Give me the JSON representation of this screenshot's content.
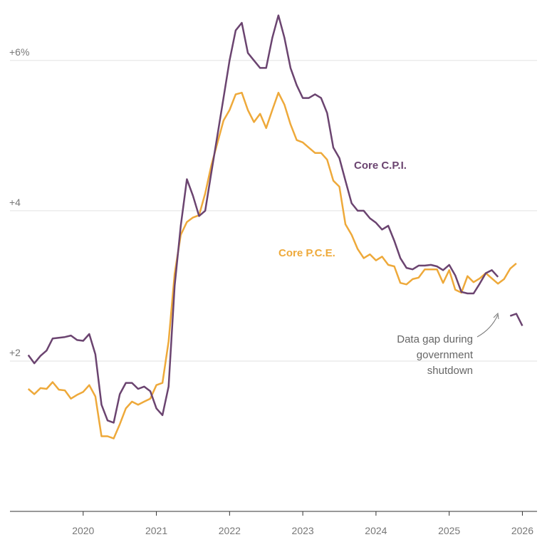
{
  "chart_data": {
    "type": "line",
    "x": [
      2019.25,
      2019.333,
      2019.417,
      2019.5,
      2019.583,
      2019.667,
      2019.75,
      2019.833,
      2019.917,
      2020,
      2020.083,
      2020.167,
      2020.25,
      2020.333,
      2020.417,
      2020.5,
      2020.583,
      2020.667,
      2020.75,
      2020.833,
      2020.917,
      2021,
      2021.083,
      2021.167,
      2021.25,
      2021.333,
      2021.417,
      2021.5,
      2021.583,
      2021.667,
      2021.75,
      2021.833,
      2021.917,
      2022,
      2022.083,
      2022.167,
      2022.25,
      2022.333,
      2022.417,
      2022.5,
      2022.583,
      2022.667,
      2022.75,
      2022.833,
      2022.917,
      2023,
      2023.083,
      2023.167,
      2023.25,
      2023.333,
      2023.417,
      2023.5,
      2023.583,
      2023.667,
      2023.75,
      2023.833,
      2023.917,
      2024,
      2024.083,
      2024.167,
      2024.25,
      2024.333,
      2024.417,
      2024.5,
      2024.583,
      2024.667,
      2024.75,
      2024.833,
      2024.917,
      2025,
      2025.083,
      2025.167,
      2025.25,
      2025.333,
      2025.417,
      2025.5,
      2025.583,
      2025.667,
      2025.75,
      2025.833,
      2025.917,
      2026
    ],
    "series": [
      {
        "name": "Core C.P.I.",
        "color": "#6b4470",
        "values": [
          2.08,
          1.97,
          2.07,
          2.14,
          2.3,
          2.31,
          2.32,
          2.34,
          2.28,
          2.27,
          2.36,
          2.09,
          1.42,
          1.21,
          1.18,
          1.56,
          1.71,
          1.71,
          1.63,
          1.66,
          1.6,
          1.37,
          1.28,
          1.66,
          3.0,
          3.8,
          4.42,
          4.2,
          3.93,
          4.0,
          4.5,
          5.0,
          5.5,
          6.0,
          6.4,
          6.5,
          6.1,
          6.0,
          5.9,
          5.9,
          6.3,
          6.6,
          6.3,
          5.9,
          5.67,
          5.5,
          5.5,
          5.55,
          5.5,
          5.3,
          4.84,
          4.7,
          4.4,
          4.1,
          4.0,
          4.0,
          3.9,
          3.84,
          3.75,
          3.8,
          3.6,
          3.37,
          3.24,
          3.22,
          3.27,
          3.27,
          3.28,
          3.26,
          3.21,
          3.28,
          3.14,
          2.92,
          2.9,
          2.9,
          3.03,
          3.17,
          3.21,
          3.12,
          null,
          2.6,
          2.63,
          2.47
        ]
      },
      {
        "name": "Core P.C.E.",
        "color": "#eea93a",
        "values": [
          1.63,
          1.56,
          1.64,
          1.63,
          1.72,
          1.62,
          1.61,
          1.5,
          1.55,
          1.59,
          1.68,
          1.53,
          1.0,
          1.0,
          0.97,
          1.16,
          1.37,
          1.46,
          1.42,
          1.46,
          1.5,
          1.68,
          1.71,
          2.26,
          3.16,
          3.68,
          3.85,
          3.91,
          3.94,
          4.23,
          4.6,
          4.9,
          5.2,
          5.34,
          5.55,
          5.57,
          5.34,
          5.18,
          5.29,
          5.1,
          5.34,
          5.57,
          5.41,
          5.15,
          4.94,
          4.91,
          4.84,
          4.77,
          4.77,
          4.68,
          4.4,
          4.32,
          3.82,
          3.68,
          3.49,
          3.37,
          3.42,
          3.34,
          3.39,
          3.28,
          3.26,
          3.04,
          3.02,
          3.09,
          3.11,
          3.22,
          3.22,
          3.22,
          3.04,
          3.21,
          2.95,
          2.91,
          3.13,
          3.05,
          3.1,
          3.17,
          3.1,
          3.03,
          3.09,
          3.23,
          3.3,
          null
        ]
      }
    ],
    "xlim": [
      2019,
      2026.2
    ],
    "xticks": [
      2020,
      2021,
      2022,
      2023,
      2024,
      2025,
      2026
    ],
    "ylim": [
      0,
      6.7
    ],
    "yticks": [
      {
        "value": 2,
        "label": "+2"
      },
      {
        "value": 4,
        "label": "+4"
      },
      {
        "value": 6,
        "label": "+6%"
      }
    ],
    "grid": true,
    "annotation": [
      "Data gap during",
      "government",
      "shutdown"
    ]
  }
}
